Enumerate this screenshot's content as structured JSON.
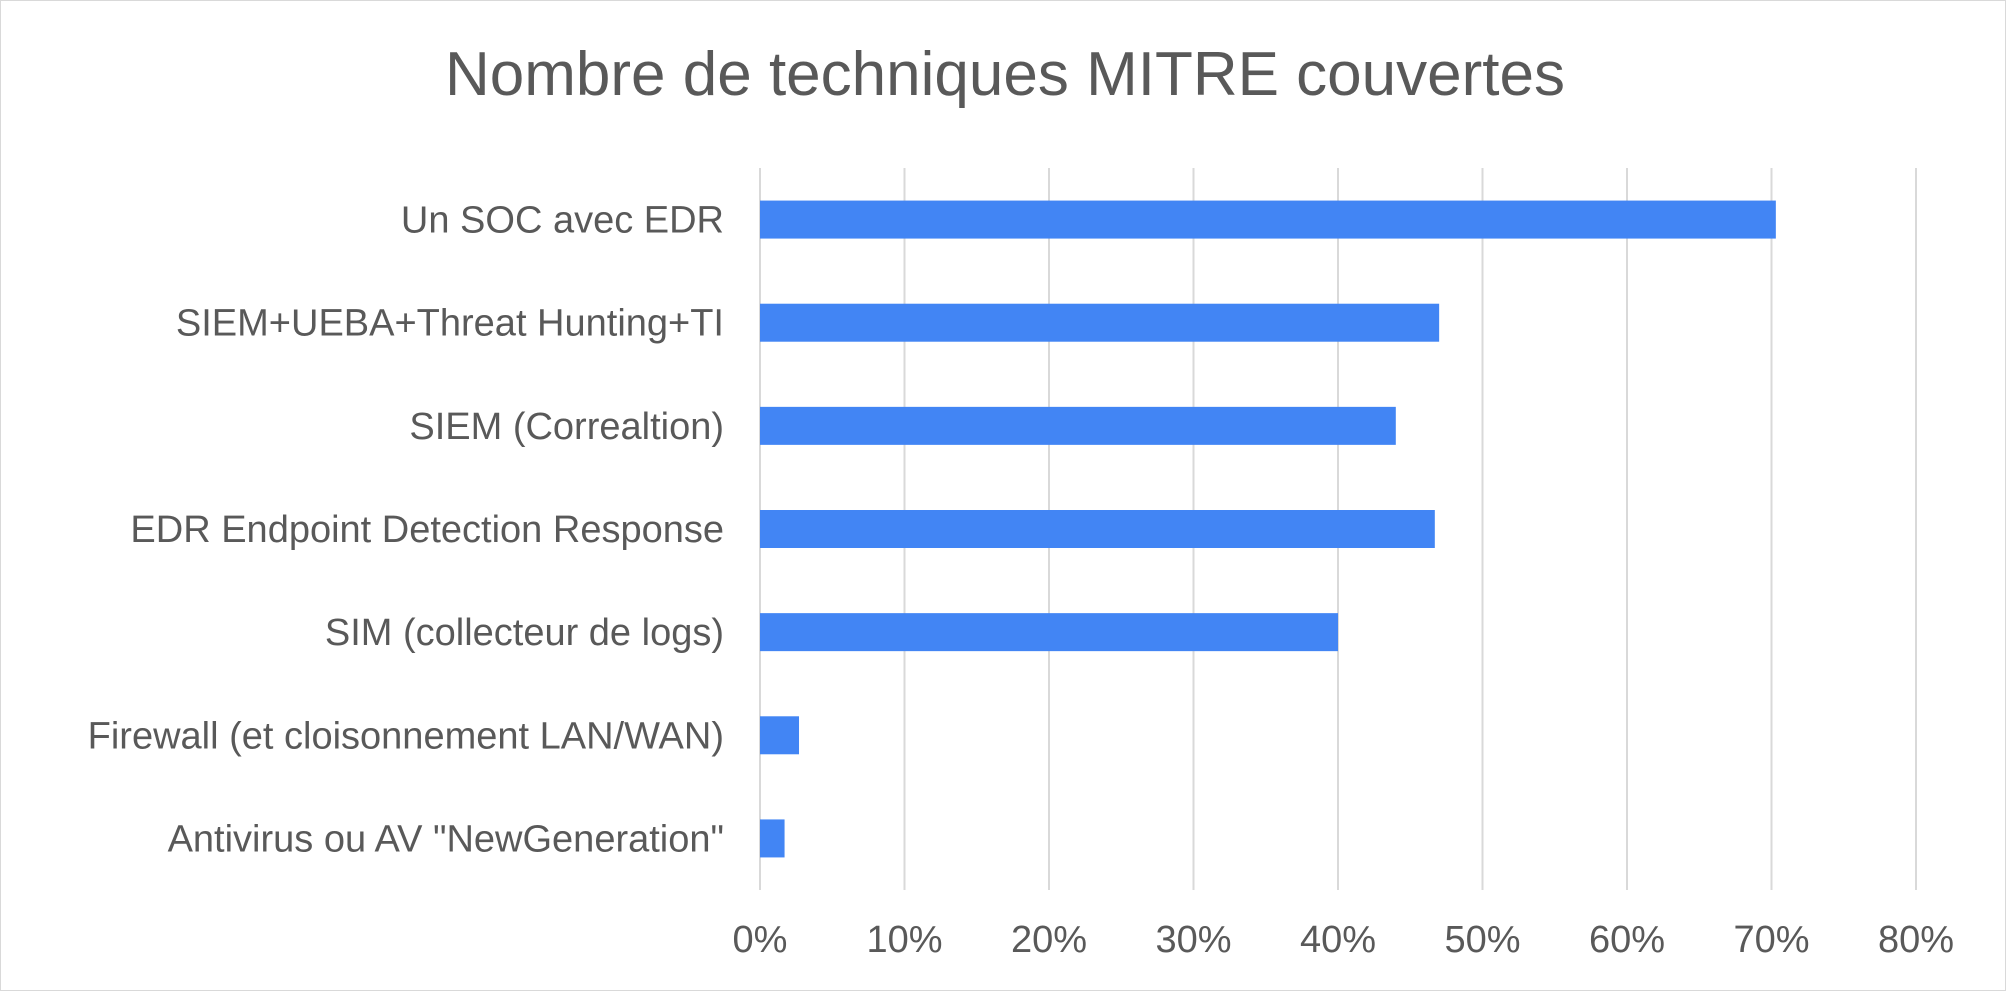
{
  "chart_data": {
    "type": "bar",
    "orientation": "horizontal",
    "title": "Nombre de techniques MITRE couvertes",
    "xlabel": "",
    "ylabel": "",
    "categories": [
      "Un SOC avec EDR",
      "SIEM+UEBA+Threat Hunting+TI",
      "SIEM (Correaltion)",
      "EDR Endpoint Detection Response",
      "SIM (collecteur de logs)",
      "Firewall (et cloisonnement LAN/WAN)",
      "Antivirus ou AV \"NewGeneration\""
    ],
    "values": [
      0.703,
      0.47,
      0.44,
      0.467,
      0.4,
      0.027,
      0.017
    ],
    "xlim": [
      0,
      0.8
    ],
    "x_ticks": [
      "0%",
      "10%",
      "20%",
      "30%",
      "40%",
      "50%",
      "60%",
      "70%",
      "80%"
    ],
    "grid": "vertical",
    "legend": "none",
    "colors": {
      "bar": "#4285F4",
      "grid": "#d9d9d9",
      "text": "#595959"
    }
  }
}
